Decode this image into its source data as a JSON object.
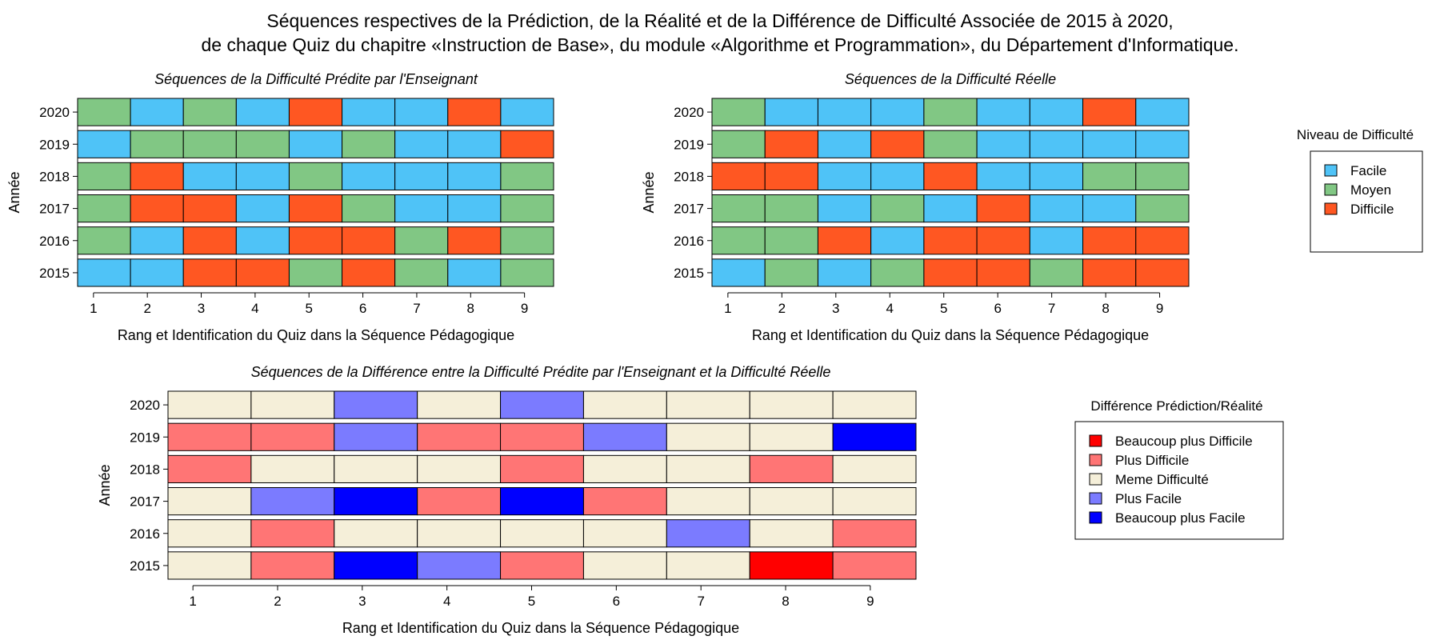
{
  "title_line1": "Séquences respectives de la Prédiction, de la Réalité et de la Différence de Difficulté Associée de 2015 à 2020,",
  "title_line2": "de chaque Quiz du chapitre «Instruction de Base», du module «Algorithme et Programmation», du Département d'Informatique.",
  "legends": {
    "difficulty": {
      "title": "Niveau de Difficulté",
      "items": [
        {
          "label": "Facile",
          "color": "#4FC3F7"
        },
        {
          "label": "Moyen",
          "color": "#81C784"
        },
        {
          "label": "Difficile",
          "color": "#FF5722"
        }
      ]
    },
    "difference": {
      "title": "Différence Prédiction/Réalité",
      "items": [
        {
          "label": "Beaucoup plus Difficile",
          "color": "#FF0000"
        },
        {
          "label": "Plus Difficile",
          "color": "#FF7575"
        },
        {
          "label": "Meme Difficulté",
          "color": "#F5EFD9"
        },
        {
          "label": "Plus Facile",
          "color": "#7B7BFF"
        },
        {
          "label": "Beaucoup plus Facile",
          "color": "#0000FF"
        }
      ]
    }
  },
  "chart_data": [
    {
      "type": "heatmap",
      "title": "Séquences de la Difficulté Prédite par l'Enseignant",
      "xlabel": "Rang et Identification du Quiz dans la Séquence Pédagogique",
      "ylabel": "Année",
      "x": [
        1,
        2,
        3,
        4,
        5,
        6,
        7,
        8,
        9
      ],
      "y": [
        2020,
        2019,
        2018,
        2017,
        2016,
        2015
      ],
      "legend": "difficulty",
      "values": [
        [
          "Moyen",
          "Facile",
          "Moyen",
          "Facile",
          "Difficile",
          "Facile",
          "Facile",
          "Difficile",
          "Facile"
        ],
        [
          "Facile",
          "Moyen",
          "Moyen",
          "Moyen",
          "Facile",
          "Moyen",
          "Facile",
          "Facile",
          "Difficile"
        ],
        [
          "Moyen",
          "Difficile",
          "Facile",
          "Facile",
          "Moyen",
          "Facile",
          "Facile",
          "Facile",
          "Moyen"
        ],
        [
          "Moyen",
          "Difficile",
          "Difficile",
          "Facile",
          "Difficile",
          "Moyen",
          "Facile",
          "Facile",
          "Moyen"
        ],
        [
          "Moyen",
          "Facile",
          "Difficile",
          "Facile",
          "Difficile",
          "Difficile",
          "Moyen",
          "Difficile",
          "Moyen"
        ],
        [
          "Facile",
          "Facile",
          "Difficile",
          "Difficile",
          "Moyen",
          "Difficile",
          "Moyen",
          "Facile",
          "Moyen"
        ]
      ]
    },
    {
      "type": "heatmap",
      "title": "Séquences de la Difficulté Réelle",
      "xlabel": "Rang et Identification du Quiz dans la Séquence Pédagogique",
      "ylabel": "Année",
      "x": [
        1,
        2,
        3,
        4,
        5,
        6,
        7,
        8,
        9
      ],
      "y": [
        2020,
        2019,
        2018,
        2017,
        2016,
        2015
      ],
      "legend": "difficulty",
      "values": [
        [
          "Moyen",
          "Facile",
          "Facile",
          "Facile",
          "Moyen",
          "Facile",
          "Facile",
          "Difficile",
          "Facile"
        ],
        [
          "Moyen",
          "Difficile",
          "Facile",
          "Difficile",
          "Moyen",
          "Facile",
          "Facile",
          "Facile",
          "Facile"
        ],
        [
          "Difficile",
          "Difficile",
          "Facile",
          "Facile",
          "Difficile",
          "Facile",
          "Facile",
          "Moyen",
          "Moyen"
        ],
        [
          "Moyen",
          "Moyen",
          "Facile",
          "Moyen",
          "Facile",
          "Difficile",
          "Facile",
          "Facile",
          "Moyen"
        ],
        [
          "Moyen",
          "Moyen",
          "Difficile",
          "Facile",
          "Difficile",
          "Difficile",
          "Facile",
          "Difficile",
          "Difficile"
        ],
        [
          "Facile",
          "Moyen",
          "Facile",
          "Moyen",
          "Difficile",
          "Difficile",
          "Moyen",
          "Difficile",
          "Difficile"
        ]
      ]
    },
    {
      "type": "heatmap",
      "title": "Séquences de la Différence entre la Difficulté Prédite par l'Enseignant et la Difficulté Réelle",
      "xlabel": "Rang et Identification du Quiz dans la Séquence Pédagogique",
      "ylabel": "Année",
      "x": [
        1,
        2,
        3,
        4,
        5,
        6,
        7,
        8,
        9
      ],
      "y": [
        2020,
        2019,
        2018,
        2017,
        2016,
        2015
      ],
      "legend": "difference",
      "values": [
        [
          "Meme Difficulté",
          "Meme Difficulté",
          "Plus Facile",
          "Meme Difficulté",
          "Plus Facile",
          "Meme Difficulté",
          "Meme Difficulté",
          "Meme Difficulté",
          "Meme Difficulté"
        ],
        [
          "Plus Difficile",
          "Plus Difficile",
          "Plus Facile",
          "Plus Difficile",
          "Plus Difficile",
          "Plus Facile",
          "Meme Difficulté",
          "Meme Difficulté",
          "Beaucoup plus Facile"
        ],
        [
          "Plus Difficile",
          "Meme Difficulté",
          "Meme Difficulté",
          "Meme Difficulté",
          "Plus Difficile",
          "Meme Difficulté",
          "Meme Difficulté",
          "Plus Difficile",
          "Meme Difficulté"
        ],
        [
          "Meme Difficulté",
          "Plus Facile",
          "Beaucoup plus Facile",
          "Plus Difficile",
          "Beaucoup plus Facile",
          "Plus Difficile",
          "Meme Difficulté",
          "Meme Difficulté",
          "Meme Difficulté"
        ],
        [
          "Meme Difficulté",
          "Plus Difficile",
          "Meme Difficulté",
          "Meme Difficulté",
          "Meme Difficulté",
          "Meme Difficulté",
          "Plus Facile",
          "Meme Difficulté",
          "Plus Difficile"
        ],
        [
          "Meme Difficulté",
          "Plus Difficile",
          "Beaucoup plus Facile",
          "Plus Facile",
          "Plus Difficile",
          "Meme Difficulté",
          "Meme Difficulté",
          "Beaucoup plus Difficile",
          "Plus Difficile"
        ]
      ]
    }
  ]
}
